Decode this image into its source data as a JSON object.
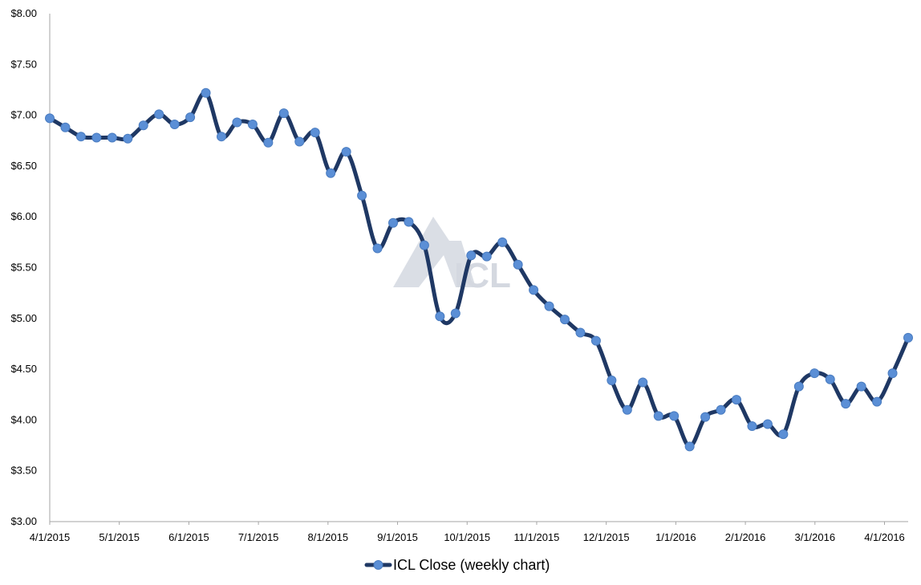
{
  "chart_data": {
    "type": "line",
    "title": "",
    "xlabel": "",
    "ylabel": "",
    "ylim": [
      3.0,
      8.0
    ],
    "y_ticks": [
      3.0,
      3.5,
      4.0,
      4.5,
      5.0,
      5.5,
      6.0,
      6.5,
      7.0,
      7.5,
      8.0
    ],
    "y_tick_labels": [
      "$3.00",
      "$3.50",
      "$4.00",
      "$4.50",
      "$5.00",
      "$5.50",
      "$6.00",
      "$6.50",
      "$7.00",
      "$7.50",
      "$8.00"
    ],
    "x_tick_labels": [
      "4/1/2015",
      "5/1/2015",
      "6/1/2015",
      "7/1/2015",
      "8/1/2015",
      "9/1/2015",
      "10/1/2015",
      "11/1/2015",
      "12/1/2015",
      "1/1/2016",
      "2/1/2016",
      "3/1/2016",
      "4/1/2016"
    ],
    "grid": false,
    "legend_position": "bottom",
    "series": [
      {
        "name": "ICL Close (weekly chart)",
        "line_color": "#1f3864",
        "marker_color": "#5b8fd6",
        "values": [
          6.97,
          6.88,
          6.79,
          6.78,
          6.78,
          6.77,
          6.9,
          7.01,
          6.91,
          6.98,
          7.22,
          6.79,
          6.93,
          6.91,
          6.73,
          7.02,
          6.74,
          6.83,
          6.43,
          6.64,
          6.21,
          5.69,
          5.94,
          5.95,
          5.72,
          5.02,
          5.05,
          5.62,
          5.61,
          5.75,
          5.53,
          5.28,
          5.12,
          4.99,
          4.86,
          4.78,
          4.39,
          4.1,
          4.37,
          4.04,
          4.04,
          3.74,
          4.03,
          4.1,
          4.2,
          3.94,
          3.96,
          3.86,
          4.33,
          4.46,
          4.4,
          4.16,
          4.33,
          4.18,
          4.46,
          4.81
        ]
      }
    ]
  },
  "watermark": {
    "text": "ICL",
    "color": "#d4d8e0"
  }
}
